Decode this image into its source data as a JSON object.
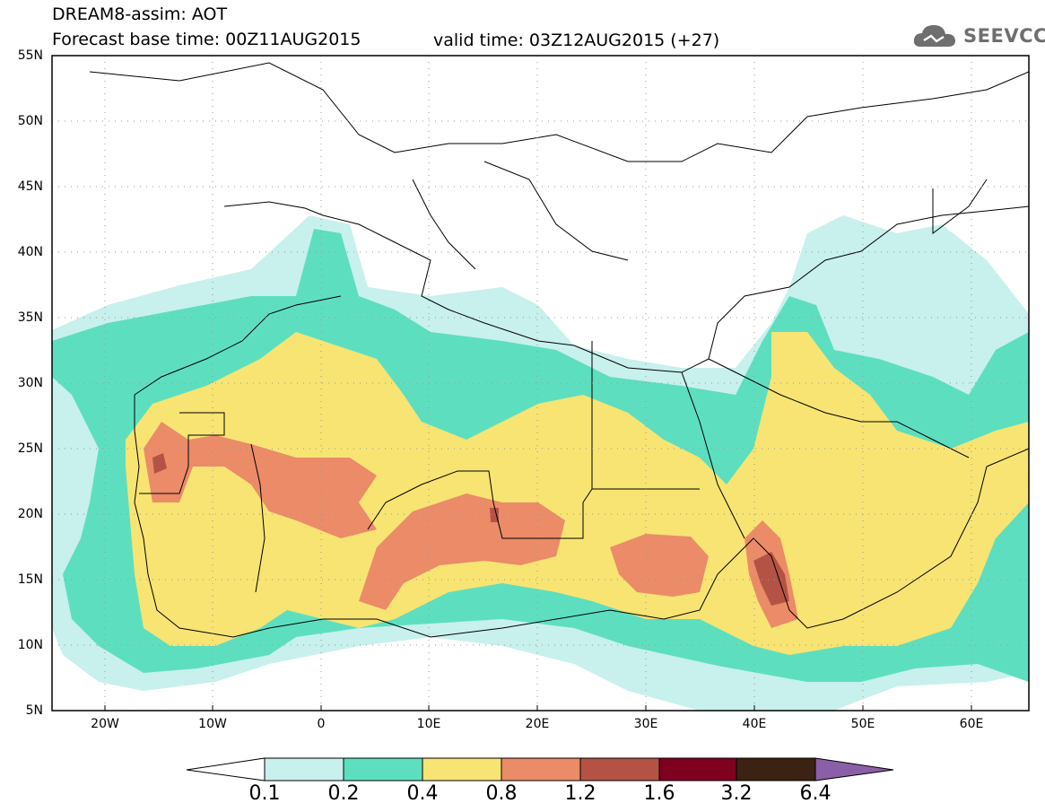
{
  "header": {
    "line1": "DREAM8-assim: AOT",
    "line2_base": "Forecast base time: 00Z11AUG2015",
    "line2_valid": "valid time: 03Z12AUG2015 (+27)"
  },
  "logo": {
    "text": "SEEVCCC",
    "icon": "cloud-icon"
  },
  "axes": {
    "lat_ticks": [
      "55N",
      "50N",
      "45N",
      "40N",
      "35N",
      "30N",
      "25N",
      "20N",
      "15N",
      "10N",
      "5N"
    ],
    "lon_ticks": [
      "20W",
      "10W",
      "0",
      "10E",
      "20E",
      "30E",
      "40E",
      "50E",
      "60E"
    ]
  },
  "colorbar": {
    "labels": [
      "0.1",
      "0.2",
      "0.4",
      "0.8",
      "1.2",
      "1.6",
      "3.2",
      "6.4"
    ],
    "colors": [
      "#c8f0ec",
      "#5ddfbf",
      "#f7e473",
      "#eb8b68",
      "#b45345",
      "#800020",
      "#3c2212",
      "#8b5fa7"
    ]
  },
  "map_colors": {
    "ocean": "#ffffff",
    "borders": "#000000"
  }
}
